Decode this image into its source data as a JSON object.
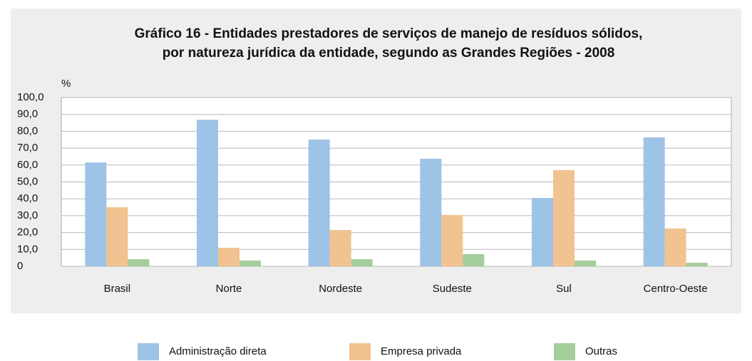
{
  "chart_data": {
    "type": "bar",
    "title": [
      "Gráfico 16 - Entidades prestadores de serviços de manejo de resíduos sólidos,",
      "por natureza jurídica da entidade, segundo as Grandes Regiões - 2008"
    ],
    "y_unit": "%",
    "categories": [
      "Brasil",
      "Norte",
      "Nordeste",
      "Sudeste",
      "Sul",
      "Centro-Oeste"
    ],
    "series": [
      {
        "name": "Administração direta",
        "color": "#9dc3e6",
        "values": [
          61.5,
          86.8,
          75.1,
          63.7,
          40.5,
          76.4
        ]
      },
      {
        "name": "Empresa privada",
        "color": "#f0c390",
        "values": [
          35.0,
          11.0,
          21.5,
          30.4,
          57.0,
          22.4
        ]
      },
      {
        "name": "Outras",
        "color": "#a4cd9c",
        "values": [
          4.2,
          3.4,
          4.2,
          7.2,
          3.4,
          2.1
        ]
      }
    ],
    "ylim": [
      0,
      100
    ],
    "yticks": [
      0,
      {
        "value": 10,
        "label": "10,0"
      },
      {
        "value": 20,
        "label": "20,0"
      },
      {
        "value": 30,
        "label": "30,0"
      },
      {
        "value": 40,
        "label": "40,0"
      },
      {
        "value": 50,
        "label": "50,0"
      },
      {
        "value": 60,
        "label": "60,0"
      },
      {
        "value": 70,
        "label": "70,0"
      },
      {
        "value": 80,
        "label": "80,0"
      },
      {
        "value": 90,
        "label": "90,0"
      },
      {
        "value": 100,
        "label": "100,0"
      }
    ],
    "grid": true
  }
}
